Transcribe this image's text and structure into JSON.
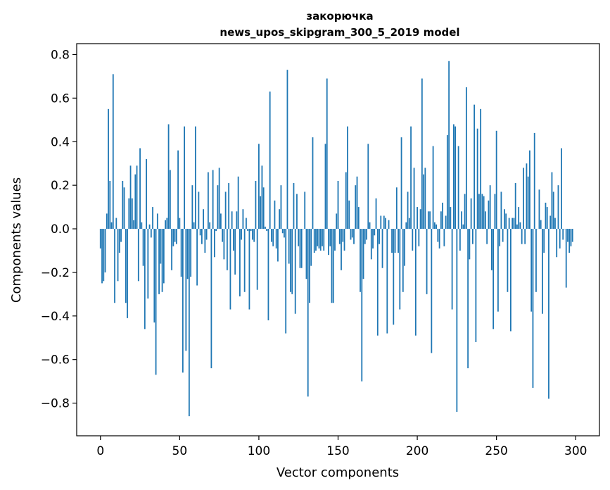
{
  "chart_data": {
    "type": "bar",
    "title": "закорючка",
    "subtitle": "news_upos_skipgram_300_5_2019 model",
    "xlabel": "Vector components",
    "ylabel": "Components values",
    "xlim": [
      -15,
      315
    ],
    "ylim": [
      -0.95,
      0.85
    ],
    "xticks": [
      0,
      50,
      100,
      150,
      200,
      250,
      300
    ],
    "xtick_labels": [
      "0",
      "50",
      "100",
      "150",
      "200",
      "250",
      "300"
    ],
    "yticks": [
      -0.8,
      -0.6,
      -0.4,
      -0.2,
      0.0,
      0.2,
      0.4,
      0.6,
      0.8
    ],
    "ytick_labels": [
      "−0.8",
      "−0.6",
      "−0.4",
      "−0.2",
      "0.0",
      "0.2",
      "0.4",
      "0.6",
      "0.8"
    ],
    "grid": false,
    "bar_color": "#1f77b4",
    "series": [
      {
        "values": [
          -0.09,
          -0.25,
          -0.24,
          -0.2,
          0.07,
          0.55,
          0.22,
          0.03,
          0.71,
          -0.34,
          0.05,
          -0.24,
          -0.11,
          -0.06,
          0.22,
          0.19,
          -0.34,
          -0.41,
          0.14,
          0.29,
          0.14,
          0.04,
          0.25,
          0.29,
          -0.24,
          0.37,
          0.03,
          -0.17,
          -0.46,
          0.32,
          -0.32,
          0.02,
          -0.04,
          0.1,
          -0.43,
          -0.67,
          0.07,
          -0.3,
          -0.16,
          -0.29,
          -0.25,
          0.04,
          0.05,
          0.48,
          0.27,
          -0.19,
          -0.08,
          -0.06,
          -0.07,
          0.36,
          0.05,
          -0.22,
          -0.66,
          0.47,
          -0.56,
          -0.23,
          -0.86,
          -0.22,
          0.2,
          0.03,
          0.47,
          -0.26,
          0.17,
          -0.03,
          -0.07,
          0.09,
          -0.11,
          -0.05,
          0.26,
          0.03,
          -0.64,
          0.27,
          -0.13,
          -0.01,
          0.2,
          0.28,
          0.07,
          -0.06,
          -0.14,
          0.17,
          -0.19,
          0.21,
          -0.37,
          0.08,
          -0.1,
          -0.21,
          0.08,
          0.24,
          -0.31,
          -0.05,
          0.09,
          -0.29,
          0.05,
          -0.01,
          -0.37,
          -0.01,
          -0.05,
          -0.06,
          0.22,
          -0.28,
          0.39,
          0.15,
          0.29,
          0.19,
          0.01,
          -0.01,
          -0.42,
          0.63,
          -0.06,
          -0.08,
          0.13,
          -0.09,
          -0.15,
          0.09,
          0.2,
          -0.02,
          -0.04,
          -0.48,
          0.73,
          -0.16,
          -0.29,
          -0.3,
          0.21,
          -0.39,
          0.16,
          -0.08,
          -0.18,
          -0.18,
          0.0,
          0.17,
          -0.23,
          -0.77,
          -0.34,
          -0.17,
          0.42,
          -0.11,
          -0.1,
          -0.08,
          -0.09,
          -0.1,
          -0.08,
          -0.1,
          0.39,
          0.69,
          -0.12,
          -0.08,
          -0.34,
          -0.34,
          -0.1,
          0.07,
          0.22,
          -0.07,
          -0.19,
          -0.06,
          -0.1,
          0.26,
          0.47,
          0.13,
          -0.05,
          -0.04,
          -0.07,
          0.2,
          0.24,
          0.1,
          -0.29,
          -0.7,
          -0.23,
          -0.07,
          -0.05,
          0.39,
          0.03,
          -0.14,
          -0.09,
          -0.03,
          0.14,
          -0.49,
          -0.07,
          0.06,
          -0.18,
          0.06,
          0.05,
          -0.48,
          0.04,
          0.0,
          -0.11,
          -0.44,
          -0.11,
          0.19,
          -0.11,
          -0.37,
          0.42,
          -0.29,
          -0.17,
          0.03,
          0.17,
          0.05,
          0.47,
          -0.1,
          0.28,
          -0.49,
          0.1,
          -0.08,
          0.09,
          0.69,
          0.25,
          0.28,
          -0.3,
          0.08,
          0.08,
          -0.57,
          0.38,
          0.03,
          0.02,
          -0.06,
          -0.09,
          0.08,
          0.12,
          -0.08,
          0.06,
          0.43,
          0.77,
          0.1,
          -0.37,
          0.48,
          0.47,
          -0.84,
          0.38,
          -0.1,
          0.08,
          0.02,
          0.16,
          0.65,
          -0.64,
          -0.14,
          0.14,
          -0.07,
          0.57,
          -0.52,
          0.46,
          0.16,
          0.55,
          0.16,
          0.15,
          0.08,
          -0.07,
          0.13,
          0.2,
          -0.19,
          -0.46,
          0.16,
          0.45,
          -0.38,
          -0.08,
          0.17,
          -0.06,
          0.09,
          0.07,
          -0.29,
          0.05,
          -0.47,
          0.05,
          0.05,
          0.21,
          0.02,
          0.1,
          0.03,
          -0.07,
          0.28,
          -0.07,
          0.3,
          0.24,
          0.36,
          -0.38,
          -0.73,
          0.44,
          -0.29,
          0.0,
          0.18,
          0.04,
          -0.39,
          -0.11,
          0.12,
          0.1,
          -0.78,
          0.06,
          0.26,
          0.17,
          0.05,
          -0.13,
          0.2,
          -0.09,
          0.37,
          -0.05,
          0.0,
          -0.27,
          -0.06,
          -0.11,
          -0.08,
          -0.06
        ]
      }
    ]
  }
}
